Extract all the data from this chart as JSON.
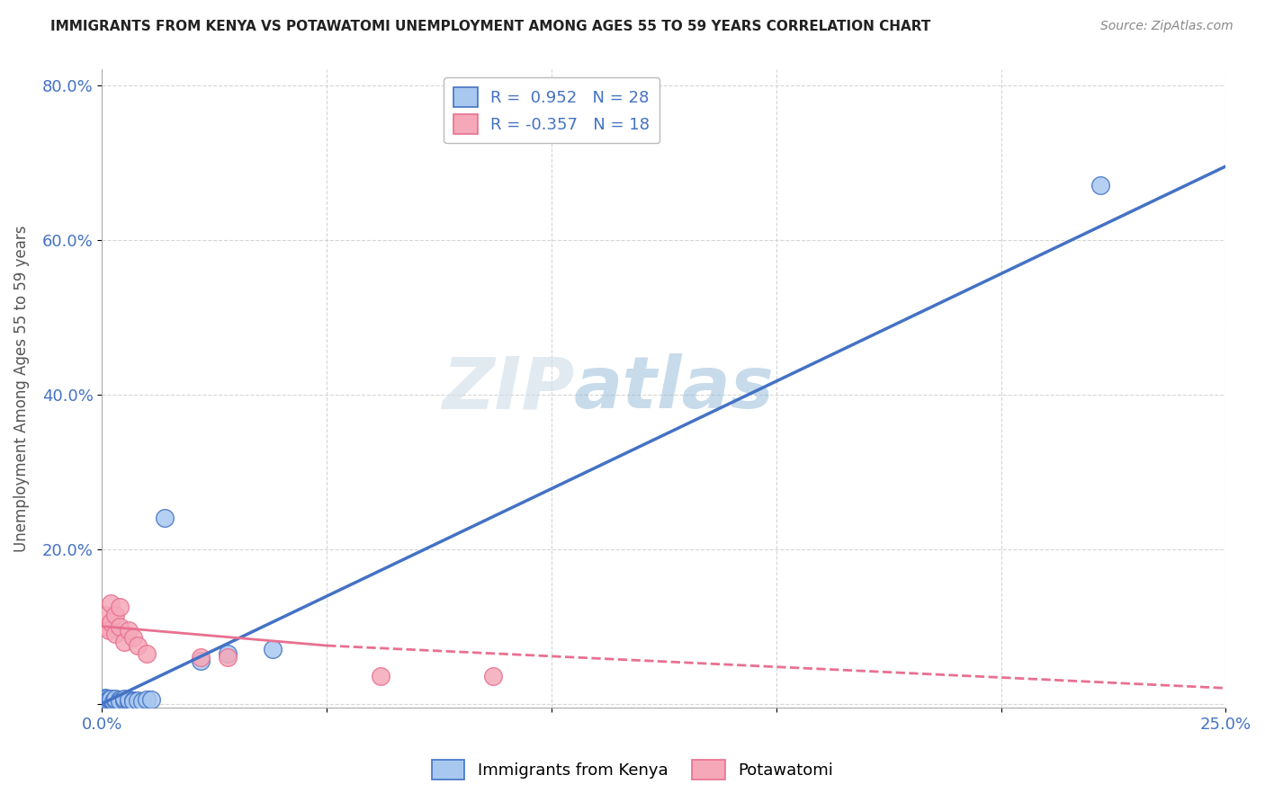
{
  "title": "IMMIGRANTS FROM KENYA VS POTAWATOMI UNEMPLOYMENT AMONG AGES 55 TO 59 YEARS CORRELATION CHART",
  "source": "Source: ZipAtlas.com",
  "ylabel": "Unemployment Among Ages 55 to 59 years",
  "xlim": [
    0.0,
    0.25
  ],
  "ylim": [
    -0.005,
    0.82
  ],
  "xticks": [
    0.0,
    0.05,
    0.1,
    0.15,
    0.2,
    0.25
  ],
  "xticklabels": [
    "0.0%",
    "",
    "",
    "",
    "",
    "25.0%"
  ],
  "yticks": [
    0.0,
    0.2,
    0.4,
    0.6,
    0.8
  ],
  "yticklabels": [
    "",
    "20.0%",
    "40.0%",
    "60.0%",
    "80.0%"
  ],
  "legend_blue_label": "R =  0.952   N = 28",
  "legend_pink_label": "R = -0.357   N = 18",
  "watermark_zip": "ZIP",
  "watermark_atlas": "atlas",
  "blue_color": "#a8c8f0",
  "pink_color": "#f5a8b8",
  "blue_line_color": "#4472c4",
  "pink_line_color": "#e87090",
  "blue_scatter": [
    [
      0.0005,
      0.005
    ],
    [
      0.0007,
      0.008
    ],
    [
      0.001,
      0.003
    ],
    [
      0.001,
      0.006
    ],
    [
      0.0012,
      0.004
    ],
    [
      0.0015,
      0.005
    ],
    [
      0.002,
      0.005
    ],
    [
      0.002,
      0.007
    ],
    [
      0.0025,
      0.003
    ],
    [
      0.003,
      0.004
    ],
    [
      0.003,
      0.006
    ],
    [
      0.004,
      0.005
    ],
    [
      0.004,
      0.003
    ],
    [
      0.005,
      0.004
    ],
    [
      0.005,
      0.007
    ],
    [
      0.006,
      0.003
    ],
    [
      0.006,
      0.005
    ],
    [
      0.007,
      0.004
    ],
    [
      0.007,
      0.003
    ],
    [
      0.008,
      0.004
    ],
    [
      0.009,
      0.003
    ],
    [
      0.01,
      0.005
    ],
    [
      0.011,
      0.005
    ],
    [
      0.014,
      0.24
    ],
    [
      0.022,
      0.055
    ],
    [
      0.028,
      0.065
    ],
    [
      0.038,
      0.07
    ],
    [
      0.222,
      0.67
    ]
  ],
  "pink_scatter": [
    [
      0.0005,
      0.1
    ],
    [
      0.001,
      0.115
    ],
    [
      0.0015,
      0.095
    ],
    [
      0.002,
      0.105
    ],
    [
      0.002,
      0.13
    ],
    [
      0.003,
      0.09
    ],
    [
      0.003,
      0.115
    ],
    [
      0.004,
      0.1
    ],
    [
      0.004,
      0.125
    ],
    [
      0.005,
      0.08
    ],
    [
      0.006,
      0.095
    ],
    [
      0.007,
      0.085
    ],
    [
      0.008,
      0.075
    ],
    [
      0.01,
      0.065
    ],
    [
      0.022,
      0.06
    ],
    [
      0.028,
      0.06
    ],
    [
      0.062,
      0.035
    ],
    [
      0.087,
      0.035
    ]
  ],
  "blue_trendline_solid": [
    [
      0.0,
      0.0
    ],
    [
      0.25,
      0.695
    ]
  ],
  "pink_trendline_solid": [
    [
      0.0,
      0.1
    ],
    [
      0.05,
      0.075
    ]
  ],
  "pink_trendline_dashed": [
    [
      0.05,
      0.075
    ],
    [
      0.25,
      0.02
    ]
  ]
}
